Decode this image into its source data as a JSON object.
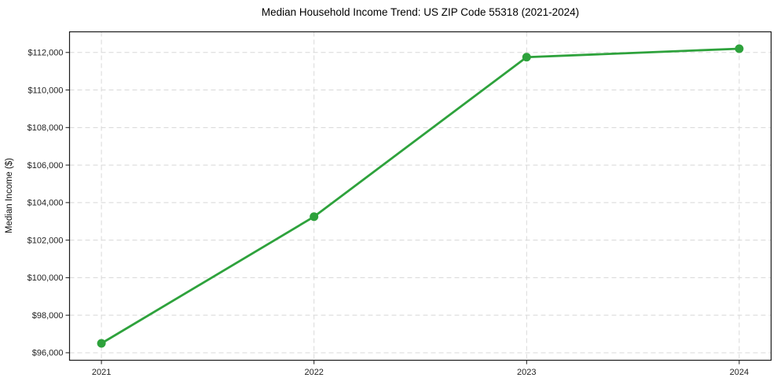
{
  "title": "Median Household Income Trend: US ZIP Code 55318 (2021-2024)",
  "chart_data": {
    "type": "line",
    "title": "Median Household Income Trend: US ZIP Code 55318 (2021-2024)",
    "xlabel": "",
    "ylabel": "Median Income ($)",
    "x": [
      2021,
      2022,
      2023,
      2024
    ],
    "series": [
      {
        "name": "Median household income",
        "values": [
          96500,
          103250,
          111750,
          112200
        ],
        "color": "#2ea23c",
        "marker": "circle"
      }
    ],
    "xtick_labels": [
      "2021",
      "2022",
      "2023",
      "2024"
    ],
    "yticks": [
      96000,
      98000,
      100000,
      102000,
      104000,
      106000,
      108000,
      110000,
      112000
    ],
    "ytick_labels": [
      "$96,000",
      "$98,000",
      "$100,000",
      "$102,000",
      "$104,000",
      "$106,000",
      "$108,000",
      "$110,000",
      "$112,000"
    ],
    "xlim": [
      2020.85,
      2024.15
    ],
    "ylim": [
      95600,
      113100
    ],
    "grid": "both, dashed",
    "legend": "none",
    "grid_color": "#d8d8d8",
    "axis_color": "#1a1a1a",
    "tick_text_color": "#222222",
    "background_color": "#ffffff"
  }
}
